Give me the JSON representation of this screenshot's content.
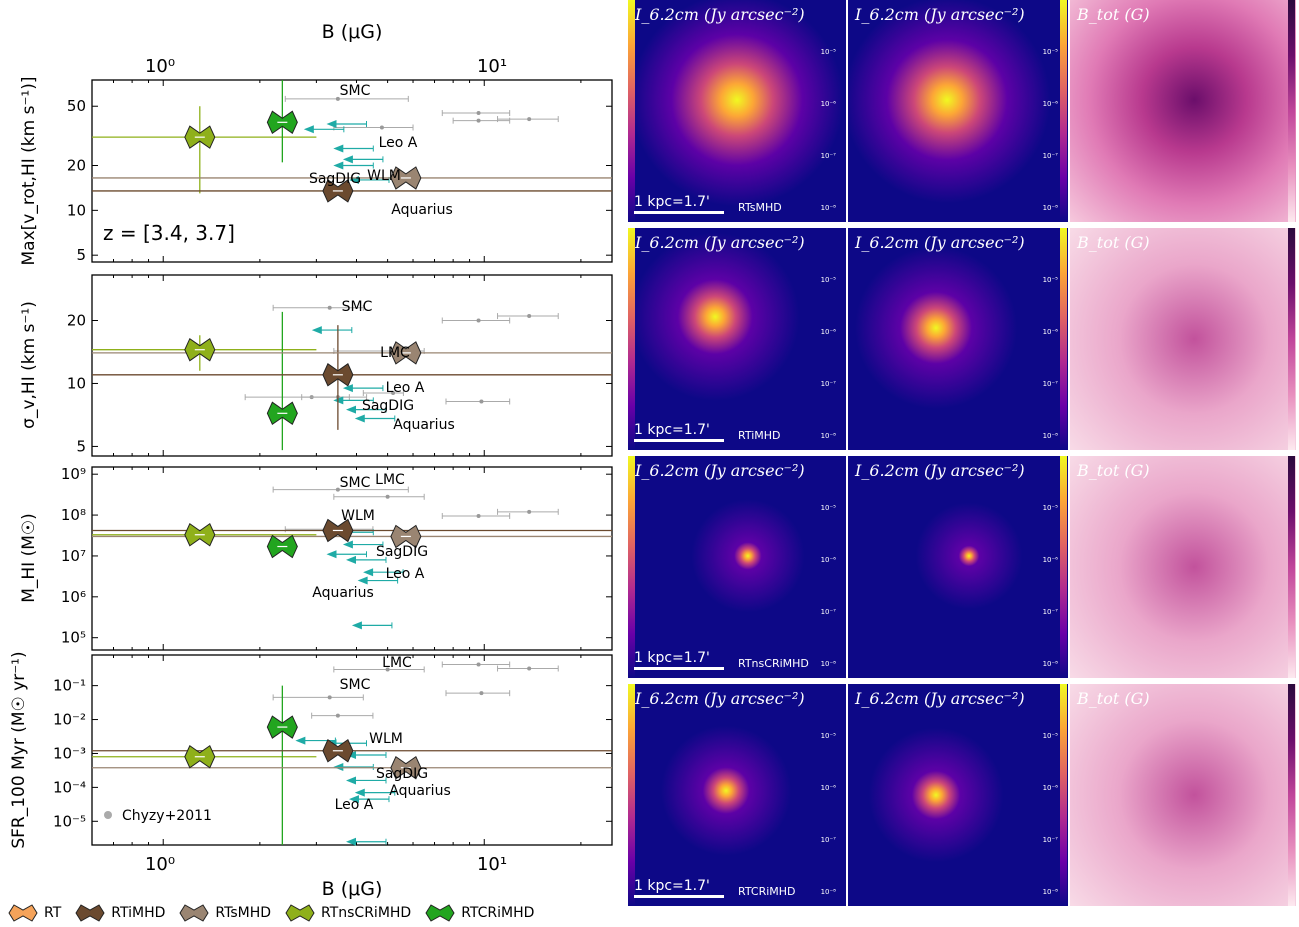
{
  "chart_data": [
    {
      "type": "scatter",
      "panel": "vrot",
      "xlabel_top": "B (μG)",
      "ylabel": "Max[v_rot,HI (km s⁻¹)]",
      "yscale": "log",
      "ylim": [
        4.5,
        75
      ],
      "xlim": [
        0.6,
        25
      ],
      "yticks": [
        "5",
        "10",
        "20",
        "50"
      ],
      "annotation": "z = [3.4, 3.7]",
      "galaxy_labels": [
        "SMC",
        "WLM",
        "Leo A",
        "SagDIG",
        "Aquarius"
      ],
      "series": [
        {
          "name": "RTnsCRiMHD",
          "x": 1.3,
          "y": 31,
          "xerr": [
            0.6,
            3.0
          ],
          "yerr": [
            13,
            50
          ]
        },
        {
          "name": "RTCRiMHD",
          "x": 2.35,
          "y": 39,
          "xerr": [
            2.35,
            2.35
          ],
          "yerr": [
            21,
            75
          ]
        },
        {
          "name": "RTiMHD",
          "x": 3.5,
          "y": 13.5,
          "xerr": [
            0.6,
            25
          ],
          "yerr": [
            13.5,
            13.5
          ]
        },
        {
          "name": "RTsMHD",
          "x": 5.7,
          "y": 16.5,
          "xerr": [
            0.6,
            25
          ],
          "yerr": [
            16.5,
            16.5
          ]
        }
      ],
      "observations": [
        {
          "x": 3.5,
          "y": 56,
          "xerr": [
            2.4,
            5.8
          ]
        },
        {
          "x": 9.6,
          "y": 45,
          "xerr": [
            7.4,
            12
          ]
        },
        {
          "x": 9.6,
          "y": 40,
          "xerr": [
            8,
            12
          ]
        },
        {
          "x": 13.8,
          "y": 41,
          "xerr": [
            11,
            17
          ]
        },
        {
          "x": 4.8,
          "y": 36,
          "xerr": [
            3.4,
            6
          ]
        }
      ],
      "upper_limits": [
        {
          "x": 4.0,
          "y": 38
        },
        {
          "x": 3.4,
          "y": 35
        },
        {
          "x": 4.2,
          "y": 26
        },
        {
          "x": 4.5,
          "y": 22
        },
        {
          "x": 4.2,
          "y": 20
        },
        {
          "x": 4.7,
          "y": 16
        }
      ]
    },
    {
      "type": "scatter",
      "panel": "sigma",
      "ylabel": "σ_v,HI (km s⁻¹)",
      "yscale": "log",
      "ylim": [
        4.5,
        33
      ],
      "xlim": [
        0.6,
        25
      ],
      "yticks": [
        "5",
        "10",
        "20"
      ],
      "galaxy_labels": [
        "SMC",
        "LMC",
        "Leo A",
        "SagDIG",
        "Aquarius"
      ],
      "series": [
        {
          "name": "RTnsCRiMHD",
          "x": 1.3,
          "y": 14.5,
          "xerr": [
            0.6,
            3.0
          ],
          "yerr": [
            11.5,
            17
          ]
        },
        {
          "name": "RTCRiMHD",
          "x": 2.35,
          "y": 7.2,
          "xerr": [
            2.35,
            2.35
          ],
          "yerr": [
            4.8,
            22
          ]
        },
        {
          "name": "RTiMHD",
          "x": 3.5,
          "y": 11,
          "xerr": [
            0.6,
            25
          ],
          "yerr": [
            6,
            19
          ]
        },
        {
          "name": "RTsMHD",
          "x": 5.7,
          "y": 14,
          "xerr": [
            0.6,
            25
          ],
          "yerr": [
            14,
            14
          ]
        }
      ],
      "observations": [
        {
          "x": 3.3,
          "y": 23,
          "xerr": [
            2.2,
            4.2
          ]
        },
        {
          "x": 5.2,
          "y": 14.3,
          "xerr": [
            3.4,
            6.5
          ]
        },
        {
          "x": 9.6,
          "y": 20,
          "xerr": [
            7.4,
            12
          ]
        },
        {
          "x": 13.8,
          "y": 21,
          "xerr": [
            11,
            17
          ]
        },
        {
          "x": 9.8,
          "y": 8.2,
          "xerr": [
            7.6,
            12
          ]
        },
        {
          "x": 2.9,
          "y": 8.6,
          "xerr": [
            1.8,
            3.8
          ]
        },
        {
          "x": 3.5,
          "y": 8.6,
          "xerr": [
            2.7,
            4.3
          ]
        },
        {
          "x": 5.2,
          "y": 9.0,
          "xerr": [
            4.2,
            5.6
          ]
        }
      ],
      "upper_limits": [
        {
          "x": 3.6,
          "y": 18
        },
        {
          "x": 4.5,
          "y": 9.5
        },
        {
          "x": 4.2,
          "y": 8.3
        },
        {
          "x": 4.6,
          "y": 7.5
        },
        {
          "x": 4.9,
          "y": 6.8
        }
      ]
    },
    {
      "type": "scatter",
      "panel": "mhi",
      "ylabel": "M_HI (M☉)",
      "yscale": "log",
      "ylim": [
        50000,
        1500000000
      ],
      "xlim": [
        0.6,
        25
      ],
      "yticks": [
        "10⁵",
        "10⁶",
        "10⁷",
        "10⁸",
        "10⁹"
      ],
      "galaxy_labels": [
        "SMC",
        "LMC",
        "WLM",
        "SagDIG",
        "Leo A",
        "Aquarius"
      ],
      "series": [
        {
          "name": "RTnsCRiMHD",
          "x": 1.3,
          "y": 33000000,
          "xerr": [
            0.6,
            3.0
          ],
          "yerr": [
            33000000,
            33000000
          ]
        },
        {
          "name": "RTCRiMHD",
          "x": 2.35,
          "y": 17000000,
          "xerr": [
            2.35,
            2.35
          ],
          "yerr": [
            17000000,
            17000000
          ]
        },
        {
          "name": "RTiMHD",
          "x": 3.5,
          "y": 42000000,
          "xerr": [
            0.6,
            25
          ],
          "yerr": [
            42000000,
            42000000
          ]
        },
        {
          "name": "RTsMHD",
          "x": 5.7,
          "y": 30000000,
          "xerr": [
            0.6,
            25
          ],
          "yerr": [
            30000000,
            30000000
          ]
        }
      ],
      "observations": [
        {
          "x": 3.5,
          "y": 420000000,
          "xerr": [
            2.2,
            5.8
          ]
        },
        {
          "x": 5.0,
          "y": 280000000,
          "xerr": [
            3.4,
            6.5
          ]
        },
        {
          "x": 9.6,
          "y": 95000000,
          "xerr": [
            7.4,
            12
          ]
        },
        {
          "x": 13.8,
          "y": 120000000,
          "xerr": [
            11,
            17
          ]
        },
        {
          "x": 3.4,
          "y": 45000000,
          "xerr": [
            2.4,
            4.5
          ]
        }
      ],
      "upper_limits": [
        {
          "x": 4.2,
          "y": 38000000
        },
        {
          "x": 4.5,
          "y": 19000000
        },
        {
          "x": 4.0,
          "y": 11000000
        },
        {
          "x": 4.6,
          "y": 8000000
        },
        {
          "x": 5.2,
          "y": 4000000
        },
        {
          "x": 5.0,
          "y": 2500000
        },
        {
          "x": 4.8,
          "y": 200000
        }
      ]
    },
    {
      "type": "scatter",
      "panel": "sfr",
      "xlabel": "B (μG)",
      "ylabel": "SFR_100 Myr (M☉ yr⁻¹)",
      "xscale": "log",
      "yscale": "log",
      "ylim": [
        2e-06,
        0.8
      ],
      "xlim": [
        0.6,
        25
      ],
      "xticks": [
        "10⁰",
        "10¹"
      ],
      "yticks": [
        "10⁻⁵",
        "10⁻⁴",
        "10⁻³",
        "10⁻²",
        "10⁻¹"
      ],
      "galaxy_labels": [
        "LMC",
        "SMC",
        "WLM",
        "SagDIG",
        "Aquarius",
        "Leo A"
      ],
      "legend_inside": "Chyzy+2011",
      "series": [
        {
          "name": "RTnsCRiMHD",
          "x": 1.3,
          "y": 0.0008,
          "xerr": [
            0.6,
            3.0
          ],
          "yerr": [
            0.0008,
            0.0008
          ]
        },
        {
          "name": "RTCRiMHD",
          "x": 2.35,
          "y": 0.006,
          "xerr": [
            2.35,
            2.35
          ],
          "yerr": [
            2e-06,
            0.1
          ]
        },
        {
          "name": "RTiMHD",
          "x": 3.5,
          "y": 0.0012,
          "xerr": [
            0.6,
            25
          ],
          "yerr": [
            0.0012,
            0.0012
          ]
        },
        {
          "name": "RTsMHD",
          "x": 5.7,
          "y": 0.00038,
          "xerr": [
            0.6,
            25
          ],
          "yerr": [
            0.00038,
            0.00038
          ]
        }
      ],
      "observations": [
        {
          "x": 5.0,
          "y": 0.3,
          "xerr": [
            3.4,
            6.5
          ]
        },
        {
          "x": 9.6,
          "y": 0.42,
          "xerr": [
            7.4,
            12
          ]
        },
        {
          "x": 13.8,
          "y": 0.32,
          "xerr": [
            11,
            17
          ]
        },
        {
          "x": 3.3,
          "y": 0.045,
          "xerr": [
            2.2,
            4.2
          ]
        },
        {
          "x": 9.8,
          "y": 0.06,
          "xerr": [
            7.6,
            12
          ]
        },
        {
          "x": 3.5,
          "y": 0.013,
          "xerr": [
            2.9,
            4.5
          ]
        }
      ],
      "upper_limits": [
        {
          "x": 3.2,
          "y": 0.0024
        },
        {
          "x": 4.0,
          "y": 0.002
        },
        {
          "x": 4.6,
          "y": 0.0009
        },
        {
          "x": 4.2,
          "y": 0.0004
        },
        {
          "x": 4.6,
          "y": 0.00016
        },
        {
          "x": 4.9,
          "y": 7e-05
        },
        {
          "x": 4.7,
          "y": 4.5e-05
        },
        {
          "x": 4.6,
          "y": 2.5e-06
        }
      ]
    }
  ],
  "series_colors": {
    "RT": "#f5a35a",
    "RTiMHD": "#6b4a2f",
    "RTsMHD": "#9a8572",
    "RTnsCRiMHD": "#8fb01a",
    "RTCRiMHD": "#22a51f",
    "observations": "#999999",
    "upper_limits": "#1faba6"
  },
  "legend": [
    "RT",
    "RTiMHD",
    "RTsMHD",
    "RTnsCRiMHD",
    "RTCRiMHD"
  ],
  "maps": {
    "title_intensity": "I_6.2cm (Jy arcsec⁻²)",
    "title_btot": "B_tot (G)",
    "scalebar": "1 kpc=1.7'",
    "colorbar_ticks": [
      "10⁻⁵",
      "10⁻⁶",
      "10⁻⁷",
      "10⁻⁸"
    ],
    "rows": [
      "RTsMHD",
      "RTiMHD",
      "RTnsCRiMHD",
      "RTCRiMHD"
    ]
  }
}
